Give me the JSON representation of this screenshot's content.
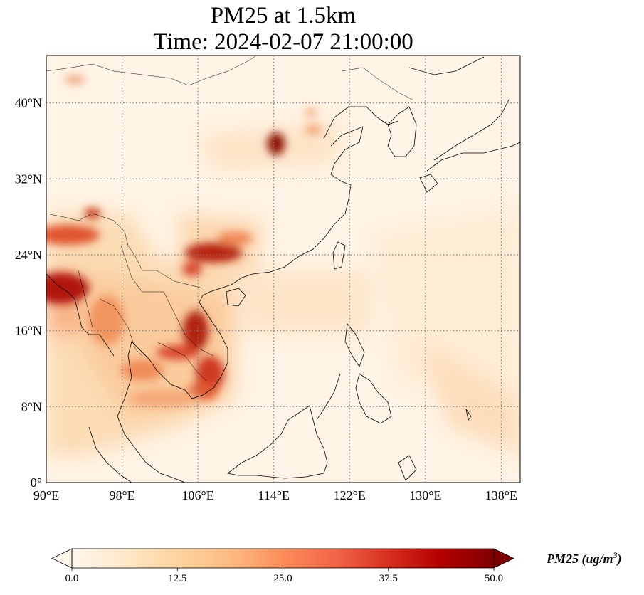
{
  "title": {
    "line1": "PM25 at 1.5km",
    "line2": "Time: 2024-02-07 21:00:00"
  },
  "map": {
    "projection": "PlateCarree",
    "lon_range": [
      90,
      140
    ],
    "lat_range": [
      0,
      45
    ],
    "lon_ticks": [
      {
        "value": 90,
        "label": "90°E"
      },
      {
        "value": 98,
        "label": "98°E"
      },
      {
        "value": 106,
        "label": "106°E"
      },
      {
        "value": 114,
        "label": "114°E"
      },
      {
        "value": 122,
        "label": "122°E"
      },
      {
        "value": 130,
        "label": "130°E"
      },
      {
        "value": 138,
        "label": "138°E"
      }
    ],
    "lat_ticks": [
      {
        "value": 0,
        "label": "0°"
      },
      {
        "value": 8,
        "label": "8°N"
      },
      {
        "value": 16,
        "label": "16°N"
      },
      {
        "value": 24,
        "label": "24°N"
      },
      {
        "value": 32,
        "label": "32°N"
      },
      {
        "value": 40,
        "label": "40°N"
      }
    ],
    "grid": "dotted",
    "coastlines": true,
    "borders": true
  },
  "colorbar": {
    "label_text": "PM25 (ug/m",
    "label_sup": "3",
    "label_close": ")",
    "colormap": "OrRd",
    "range": [
      0.0,
      50.0
    ],
    "extend": "both",
    "ticks": [
      {
        "value": 0.0,
        "label": "0.0"
      },
      {
        "value": 12.5,
        "label": "12.5"
      },
      {
        "value": 25.0,
        "label": "25.0"
      },
      {
        "value": 37.5,
        "label": "37.5"
      },
      {
        "value": 50.0,
        "label": "50.0"
      }
    ],
    "colors": [
      "#fff7ec",
      "#fee8c8",
      "#fdd49e",
      "#fdbb84",
      "#fc8d59",
      "#ef6548",
      "#d7301f",
      "#b30000",
      "#7f0000"
    ]
  },
  "field_highlights": [
    {
      "lon": 114.5,
      "lat": 35.8,
      "value": 50
    },
    {
      "lon": 106.5,
      "lat": 24.0,
      "value": 45
    },
    {
      "lon": 104.0,
      "lat": 23.0,
      "value": 40
    },
    {
      "lon": 91.5,
      "lat": 22.0,
      "value": 50
    },
    {
      "lon": 104.0,
      "lat": 16.5,
      "value": 45
    },
    {
      "lon": 106.5,
      "lat": 11.5,
      "value": 40
    },
    {
      "lon": 94.5,
      "lat": 26.5,
      "value": 35
    },
    {
      "lon": 96.0,
      "lat": 18.0,
      "value": 30
    },
    {
      "lon": 102.0,
      "lat": 13.0,
      "value": 28
    },
    {
      "lon": 117.5,
      "lat": 37.5,
      "value": 22
    },
    {
      "lon": 106.0,
      "lat": 7.0,
      "value": 15
    },
    {
      "lon": 93.0,
      "lat": 43.0,
      "value": 20
    },
    {
      "lon": 135.0,
      "lat": 8.0,
      "value": 15
    }
  ]
}
